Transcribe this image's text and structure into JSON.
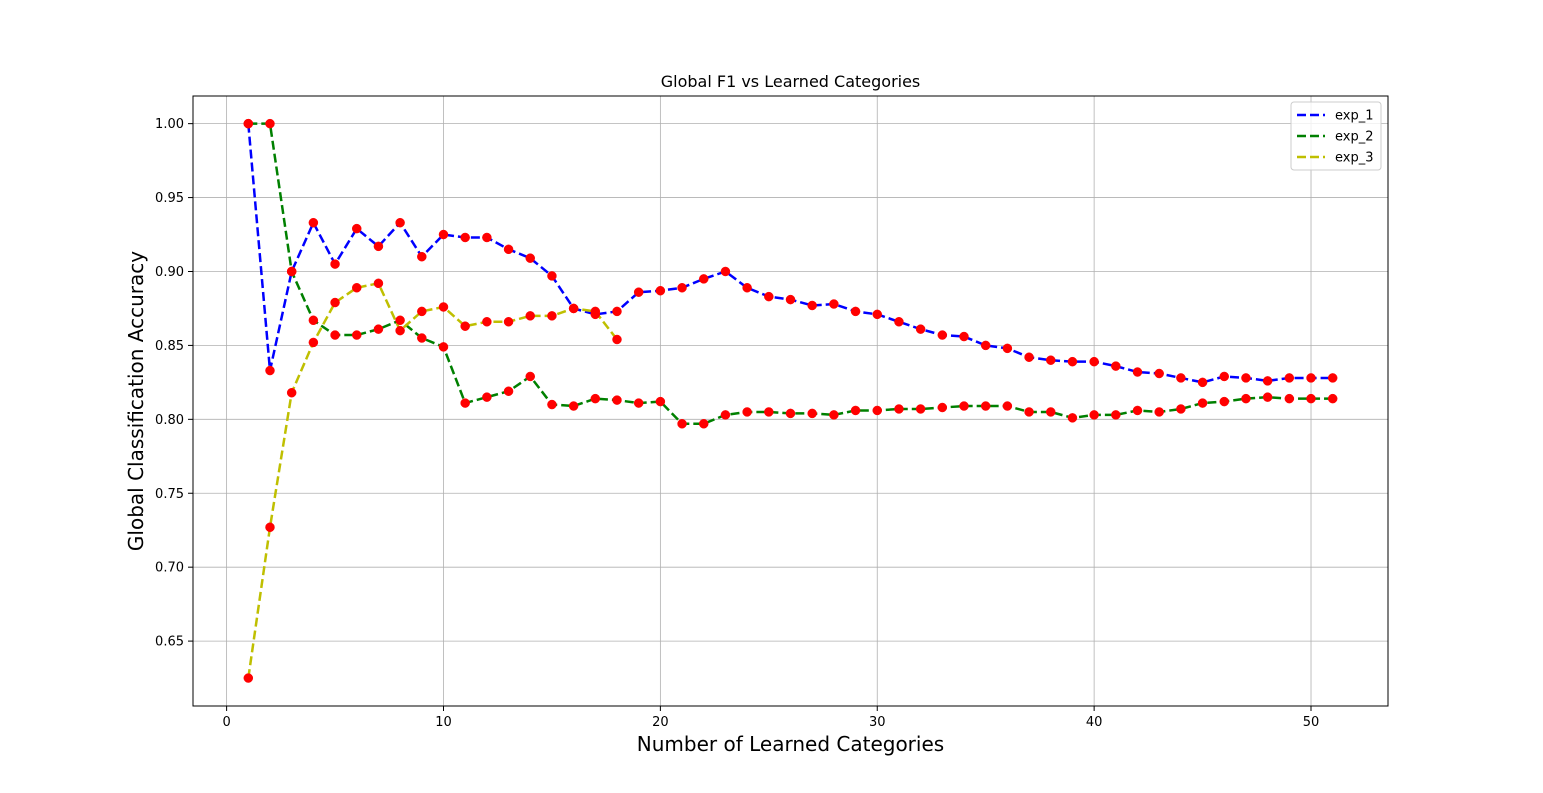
{
  "chart_data": {
    "type": "line",
    "title": "Global F1 vs Learned Categories",
    "xlabel": "Number of Learned Categories",
    "ylabel": "Global Classification Accuracy",
    "xlim": [
      -1.55,
      53.55
    ],
    "ylim": [
      0.6061,
      1.0187
    ],
    "xticks": [
      0,
      10,
      20,
      30,
      40,
      50
    ],
    "yticks": [
      0.65,
      0.7,
      0.75,
      0.8,
      0.85,
      0.9,
      0.95,
      1.0
    ],
    "xtick_labels": [
      "0",
      "10",
      "20",
      "30",
      "40",
      "50"
    ],
    "ytick_labels": [
      "0.65",
      "0.70",
      "0.75",
      "0.80",
      "0.85",
      "0.90",
      "0.95",
      "1.00"
    ],
    "grid": true,
    "legend_position": "top-right",
    "marker_color": "#ff0000",
    "series": [
      {
        "name": "exp_1",
        "color": "#0000ff",
        "x": [
          1,
          2,
          3,
          4,
          5,
          6,
          7,
          8,
          9,
          10,
          11,
          12,
          13,
          14,
          15,
          16,
          17,
          18,
          19,
          20,
          21,
          22,
          23,
          24,
          25,
          26,
          27,
          28,
          29,
          30,
          31,
          32,
          33,
          34,
          35,
          36,
          37,
          38,
          39,
          40,
          41,
          42,
          43,
          44,
          45,
          46,
          47,
          48,
          49,
          50,
          51
        ],
        "values": [
          1.0,
          0.833,
          0.9,
          0.933,
          0.905,
          0.929,
          0.917,
          0.933,
          0.91,
          0.925,
          0.923,
          0.923,
          0.915,
          0.909,
          0.897,
          0.875,
          0.871,
          0.873,
          0.886,
          0.887,
          0.889,
          0.895,
          0.9,
          0.889,
          0.883,
          0.881,
          0.877,
          0.878,
          0.873,
          0.871,
          0.866,
          0.861,
          0.857,
          0.856,
          0.85,
          0.848,
          0.842,
          0.84,
          0.839,
          0.839,
          0.836,
          0.832,
          0.831,
          0.828,
          0.825,
          0.829,
          0.828,
          0.826,
          0.828,
          0.828,
          0.828
        ]
      },
      {
        "name": "exp_2",
        "color": "#008000",
        "x": [
          1,
          2,
          3,
          4,
          5,
          6,
          7,
          8,
          9,
          10,
          11,
          12,
          13,
          14,
          15,
          16,
          17,
          18,
          19,
          20,
          21,
          22,
          23,
          24,
          25,
          26,
          27,
          28,
          29,
          30,
          31,
          32,
          33,
          34,
          35,
          36,
          37,
          38,
          39,
          40,
          41,
          42,
          43,
          44,
          45,
          46,
          47,
          48,
          49,
          50,
          51
        ],
        "values": [
          1.0,
          1.0,
          0.9,
          0.867,
          0.857,
          0.857,
          0.861,
          0.867,
          0.855,
          0.849,
          0.811,
          0.815,
          0.819,
          0.829,
          0.81,
          0.809,
          0.814,
          0.813,
          0.811,
          0.812,
          0.797,
          0.797,
          0.803,
          0.805,
          0.805,
          0.804,
          0.804,
          0.803,
          0.806,
          0.806,
          0.807,
          0.807,
          0.808,
          0.809,
          0.809,
          0.809,
          0.805,
          0.805,
          0.801,
          0.803,
          0.803,
          0.806,
          0.805,
          0.807,
          0.811,
          0.812,
          0.814,
          0.815,
          0.814,
          0.814,
          0.814
        ]
      },
      {
        "name": "exp_3",
        "color": "#bfbf00",
        "x": [
          1,
          2,
          3,
          4,
          5,
          6,
          7,
          8,
          9,
          10,
          11,
          12,
          13,
          14,
          15,
          16,
          17,
          18
        ],
        "values": [
          0.625,
          0.727,
          0.818,
          0.852,
          0.879,
          0.889,
          0.892,
          0.86,
          0.873,
          0.876,
          0.863,
          0.866,
          0.866,
          0.87,
          0.87,
          0.875,
          0.873,
          0.854
        ]
      }
    ]
  }
}
